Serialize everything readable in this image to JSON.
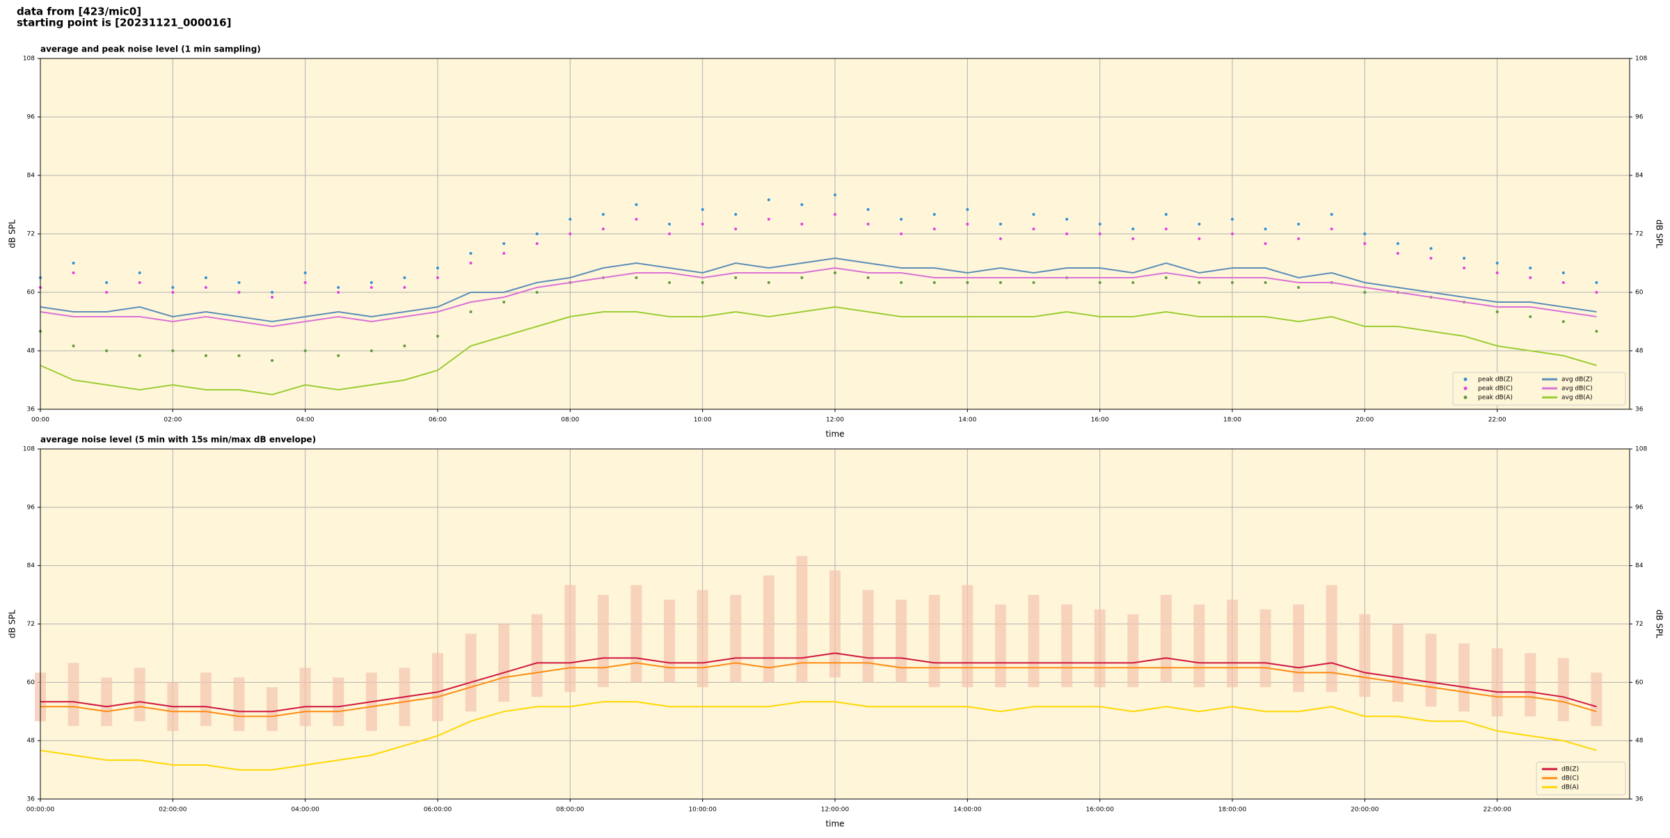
{
  "header": {
    "line1": "data from [423/mic0]",
    "line2": "starting point is [20231121_000016]"
  },
  "chart_data": [
    {
      "type": "line",
      "title": "average and peak noise level (1 min sampling)",
      "xlabel": "time",
      "ylabel": "dB SPL",
      "xlim": [
        0,
        24
      ],
      "ylim": [
        36,
        108
      ],
      "yticks": [
        36,
        48,
        60,
        72,
        84,
        96,
        108
      ],
      "xticks": [
        {
          "value": 0,
          "label": "00:00"
        },
        {
          "value": 2,
          "label": "02:00"
        },
        {
          "value": 4,
          "label": "04:00"
        },
        {
          "value": 6,
          "label": "06:00"
        },
        {
          "value": 8,
          "label": "08:00"
        },
        {
          "value": 10,
          "label": "10:00"
        },
        {
          "value": 12,
          "label": "12:00"
        },
        {
          "value": 14,
          "label": "14:00"
        },
        {
          "value": 16,
          "label": "16:00"
        },
        {
          "value": 18,
          "label": "18:00"
        },
        {
          "value": 20,
          "label": "20:00"
        },
        {
          "value": 22,
          "label": "22:00"
        }
      ],
      "grid": true,
      "legend": "lower right",
      "legend_columns": 2,
      "background": "#fff6d9",
      "x": [
        0,
        0.5,
        1,
        1.5,
        2,
        2.5,
        3,
        3.5,
        4,
        4.5,
        5,
        5.5,
        6,
        6.5,
        7,
        7.5,
        8,
        8.5,
        9,
        9.5,
        10,
        10.5,
        11,
        11.5,
        12,
        12.5,
        13,
        13.5,
        14,
        14.5,
        15,
        15.5,
        16,
        16.5,
        17,
        17.5,
        18,
        18.5,
        19,
        19.5,
        20,
        20.5,
        21,
        21.5,
        22,
        22.5,
        23,
        23.5
      ],
      "series": [
        {
          "name": "peak dB(Z)",
          "kind": "scatter",
          "color": "#2f8fd8",
          "values": [
            63,
            66,
            62,
            64,
            61,
            63,
            62,
            60,
            64,
            61,
            62,
            63,
            65,
            68,
            70,
            72,
            75,
            76,
            78,
            74,
            77,
            76,
            79,
            78,
            80,
            77,
            75,
            76,
            77,
            74,
            76,
            75,
            74,
            73,
            76,
            74,
            75,
            73,
            74,
            76,
            72,
            70,
            69,
            67,
            66,
            65,
            64,
            62
          ]
        },
        {
          "name": "peak dB(C)",
          "kind": "scatter",
          "color": "#e43fe0",
          "values": [
            61,
            64,
            60,
            62,
            60,
            61,
            60,
            59,
            62,
            60,
            61,
            61,
            63,
            66,
            68,
            70,
            72,
            73,
            75,
            72,
            74,
            73,
            75,
            74,
            76,
            74,
            72,
            73,
            74,
            71,
            73,
            72,
            72,
            71,
            73,
            71,
            72,
            70,
            71,
            73,
            70,
            68,
            67,
            65,
            64,
            63,
            62,
            60
          ]
        },
        {
          "name": "peak dB(A)",
          "kind": "scatter",
          "color": "#5e9a3c",
          "values": [
            52,
            49,
            48,
            47,
            48,
            47,
            47,
            46,
            48,
            47,
            48,
            49,
            51,
            56,
            58,
            60,
            62,
            63,
            63,
            62,
            62,
            63,
            62,
            63,
            64,
            63,
            62,
            62,
            62,
            62,
            62,
            63,
            62,
            62,
            63,
            62,
            62,
            62,
            61,
            62,
            60,
            60,
            59,
            58,
            56,
            55,
            54,
            52
          ]
        },
        {
          "name": "avg dB(Z)",
          "kind": "line",
          "color": "#5b8db8",
          "values": [
            57,
            56,
            56,
            57,
            55,
            56,
            55,
            54,
            55,
            56,
            55,
            56,
            57,
            60,
            60,
            62,
            63,
            65,
            66,
            65,
            64,
            66,
            65,
            66,
            67,
            66,
            65,
            65,
            64,
            65,
            64,
            65,
            65,
            64,
            66,
            64,
            65,
            65,
            63,
            64,
            62,
            61,
            60,
            59,
            58,
            58,
            57,
            56
          ]
        },
        {
          "name": "avg dB(C)",
          "kind": "line",
          "color": "#da70d6",
          "values": [
            56,
            55,
            55,
            55,
            54,
            55,
            54,
            53,
            54,
            55,
            54,
            55,
            56,
            58,
            59,
            61,
            62,
            63,
            64,
            64,
            63,
            64,
            64,
            64,
            65,
            64,
            64,
            63,
            63,
            63,
            63,
            63,
            63,
            63,
            64,
            63,
            63,
            63,
            62,
            62,
            61,
            60,
            59,
            58,
            57,
            57,
            56,
            55
          ]
        },
        {
          "name": "avg dB(A)",
          "kind": "line",
          "color": "#9acd32",
          "values": [
            45,
            42,
            41,
            40,
            41,
            40,
            40,
            39,
            41,
            40,
            41,
            42,
            44,
            49,
            51,
            53,
            55,
            56,
            56,
            55,
            55,
            56,
            55,
            56,
            57,
            56,
            55,
            55,
            55,
            55,
            55,
            56,
            55,
            55,
            56,
            55,
            55,
            55,
            54,
            55,
            53,
            53,
            52,
            51,
            49,
            48,
            47,
            45
          ]
        }
      ]
    },
    {
      "type": "line",
      "title": "average noise level (5 min with 15s min/max dB envelope)",
      "xlabel": "time",
      "ylabel": "dB SPL",
      "xlim": [
        0,
        24
      ],
      "ylim": [
        36,
        108
      ],
      "yticks": [
        36,
        48,
        60,
        72,
        84,
        96,
        108
      ],
      "xticks": [
        {
          "value": 0,
          "label": "00:00:00"
        },
        {
          "value": 2,
          "label": "02:00:00"
        },
        {
          "value": 4,
          "label": "04:00:00"
        },
        {
          "value": 6,
          "label": "06:00:00"
        },
        {
          "value": 8,
          "label": "08:00:00"
        },
        {
          "value": 10,
          "label": "10:00:00"
        },
        {
          "value": 12,
          "label": "12:00:00"
        },
        {
          "value": 14,
          "label": "14:00:00"
        },
        {
          "value": 16,
          "label": "16:00:00"
        },
        {
          "value": 18,
          "label": "18:00:00"
        },
        {
          "value": 20,
          "label": "20:00:00"
        },
        {
          "value": 22,
          "label": "22:00:00"
        }
      ],
      "grid": true,
      "legend": "lower right",
      "legend_columns": 1,
      "background": "#fff6d9",
      "x": [
        0,
        0.5,
        1,
        1.5,
        2,
        2.5,
        3,
        3.5,
        4,
        4.5,
        5,
        5.5,
        6,
        6.5,
        7,
        7.5,
        8,
        8.5,
        9,
        9.5,
        10,
        10.5,
        11,
        11.5,
        12,
        12.5,
        13,
        13.5,
        14,
        14.5,
        15,
        15.5,
        16,
        16.5,
        17,
        17.5,
        18,
        18.5,
        19,
        19.5,
        20,
        20.5,
        21,
        21.5,
        22,
        22.5,
        23,
        23.5
      ],
      "envelope": {
        "color": "#f4c4ae",
        "max": [
          62,
          64,
          61,
          63,
          60,
          62,
          61,
          59,
          63,
          61,
          62,
          63,
          66,
          70,
          72,
          74,
          80,
          78,
          80,
          77,
          79,
          78,
          82,
          86,
          83,
          79,
          77,
          78,
          80,
          76,
          78,
          76,
          75,
          74,
          78,
          76,
          77,
          75,
          76,
          80,
          74,
          72,
          70,
          68,
          67,
          66,
          65,
          62
        ],
        "min": [
          52,
          51,
          51,
          52,
          50,
          51,
          50,
          50,
          51,
          51,
          50,
          51,
          52,
          54,
          56,
          57,
          58,
          59,
          60,
          60,
          59,
          60,
          60,
          60,
          61,
          60,
          60,
          59,
          59,
          59,
          59,
          59,
          59,
          59,
          60,
          59,
          59,
          59,
          58,
          58,
          57,
          56,
          55,
          54,
          53,
          53,
          52,
          51
        ]
      },
      "series": [
        {
          "name": "dB(Z)",
          "kind": "line",
          "color": "#d0143c",
          "values": [
            56,
            56,
            55,
            56,
            55,
            55,
            54,
            54,
            55,
            55,
            56,
            57,
            58,
            60,
            62,
            64,
            64,
            65,
            65,
            64,
            64,
            65,
            65,
            65,
            66,
            65,
            65,
            64,
            64,
            64,
            64,
            64,
            64,
            64,
            65,
            64,
            64,
            64,
            63,
            64,
            62,
            61,
            60,
            59,
            58,
            58,
            57,
            55
          ]
        },
        {
          "name": "dB(C)",
          "kind": "line",
          "color": "#ff8a10",
          "values": [
            55,
            55,
            54,
            55,
            54,
            54,
            53,
            53,
            54,
            54,
            55,
            56,
            57,
            59,
            61,
            62,
            63,
            63,
            64,
            63,
            63,
            64,
            63,
            64,
            64,
            64,
            63,
            63,
            63,
            63,
            63,
            63,
            63,
            63,
            63,
            63,
            63,
            63,
            62,
            62,
            61,
            60,
            59,
            58,
            57,
            57,
            56,
            54
          ]
        },
        {
          "name": "dB(A)",
          "kind": "line",
          "color": "#ffd700",
          "values": [
            46,
            45,
            44,
            44,
            43,
            43,
            42,
            42,
            43,
            44,
            45,
            47,
            49,
            52,
            54,
            55,
            55,
            56,
            56,
            55,
            55,
            55,
            55,
            56,
            56,
            55,
            55,
            55,
            55,
            54,
            55,
            55,
            55,
            54,
            55,
            54,
            55,
            54,
            54,
            55,
            53,
            53,
            52,
            52,
            50,
            49,
            48,
            46
          ]
        }
      ]
    }
  ]
}
